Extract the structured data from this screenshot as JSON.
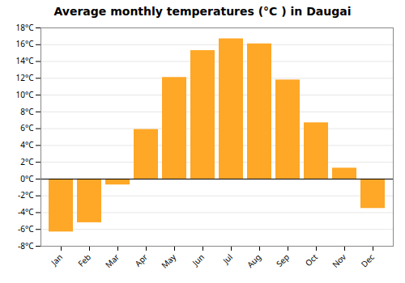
{
  "chart_data": {
    "type": "bar",
    "title": "Average monthly temperatures (°C ) in Daugai",
    "categories": [
      "Jan",
      "Feb",
      "Mar",
      "Apr",
      "May",
      "Jun",
      "Jul",
      "Aug",
      "Sep",
      "Oct",
      "Nov",
      "Dec"
    ],
    "values": [
      -6.3,
      -5.2,
      -0.7,
      5.9,
      12.1,
      15.3,
      16.7,
      16.1,
      11.8,
      6.7,
      1.3,
      -3.5
    ],
    "color": "#FFA726",
    "ylim": [
      -8,
      18
    ],
    "yticks": [
      {
        "value": -8,
        "label": "-8°C"
      },
      {
        "value": -6,
        "label": "-6°C"
      },
      {
        "value": -4,
        "label": "-4°C"
      },
      {
        "value": -2,
        "label": "-2°C"
      },
      {
        "value": 0,
        "label": "0°C"
      },
      {
        "value": 2,
        "label": "2°C"
      },
      {
        "value": 4,
        "label": "4°C"
      },
      {
        "value": 6,
        "label": "6°C"
      },
      {
        "value": 8,
        "label": "8°C"
      },
      {
        "value": 10,
        "label": "10°C"
      },
      {
        "value": 12,
        "label": "12°C"
      },
      {
        "value": 14,
        "label": "14°C"
      },
      {
        "value": 16,
        "label": "16°C"
      },
      {
        "value": 18,
        "label": "18°C"
      }
    ],
    "grid": true
  }
}
